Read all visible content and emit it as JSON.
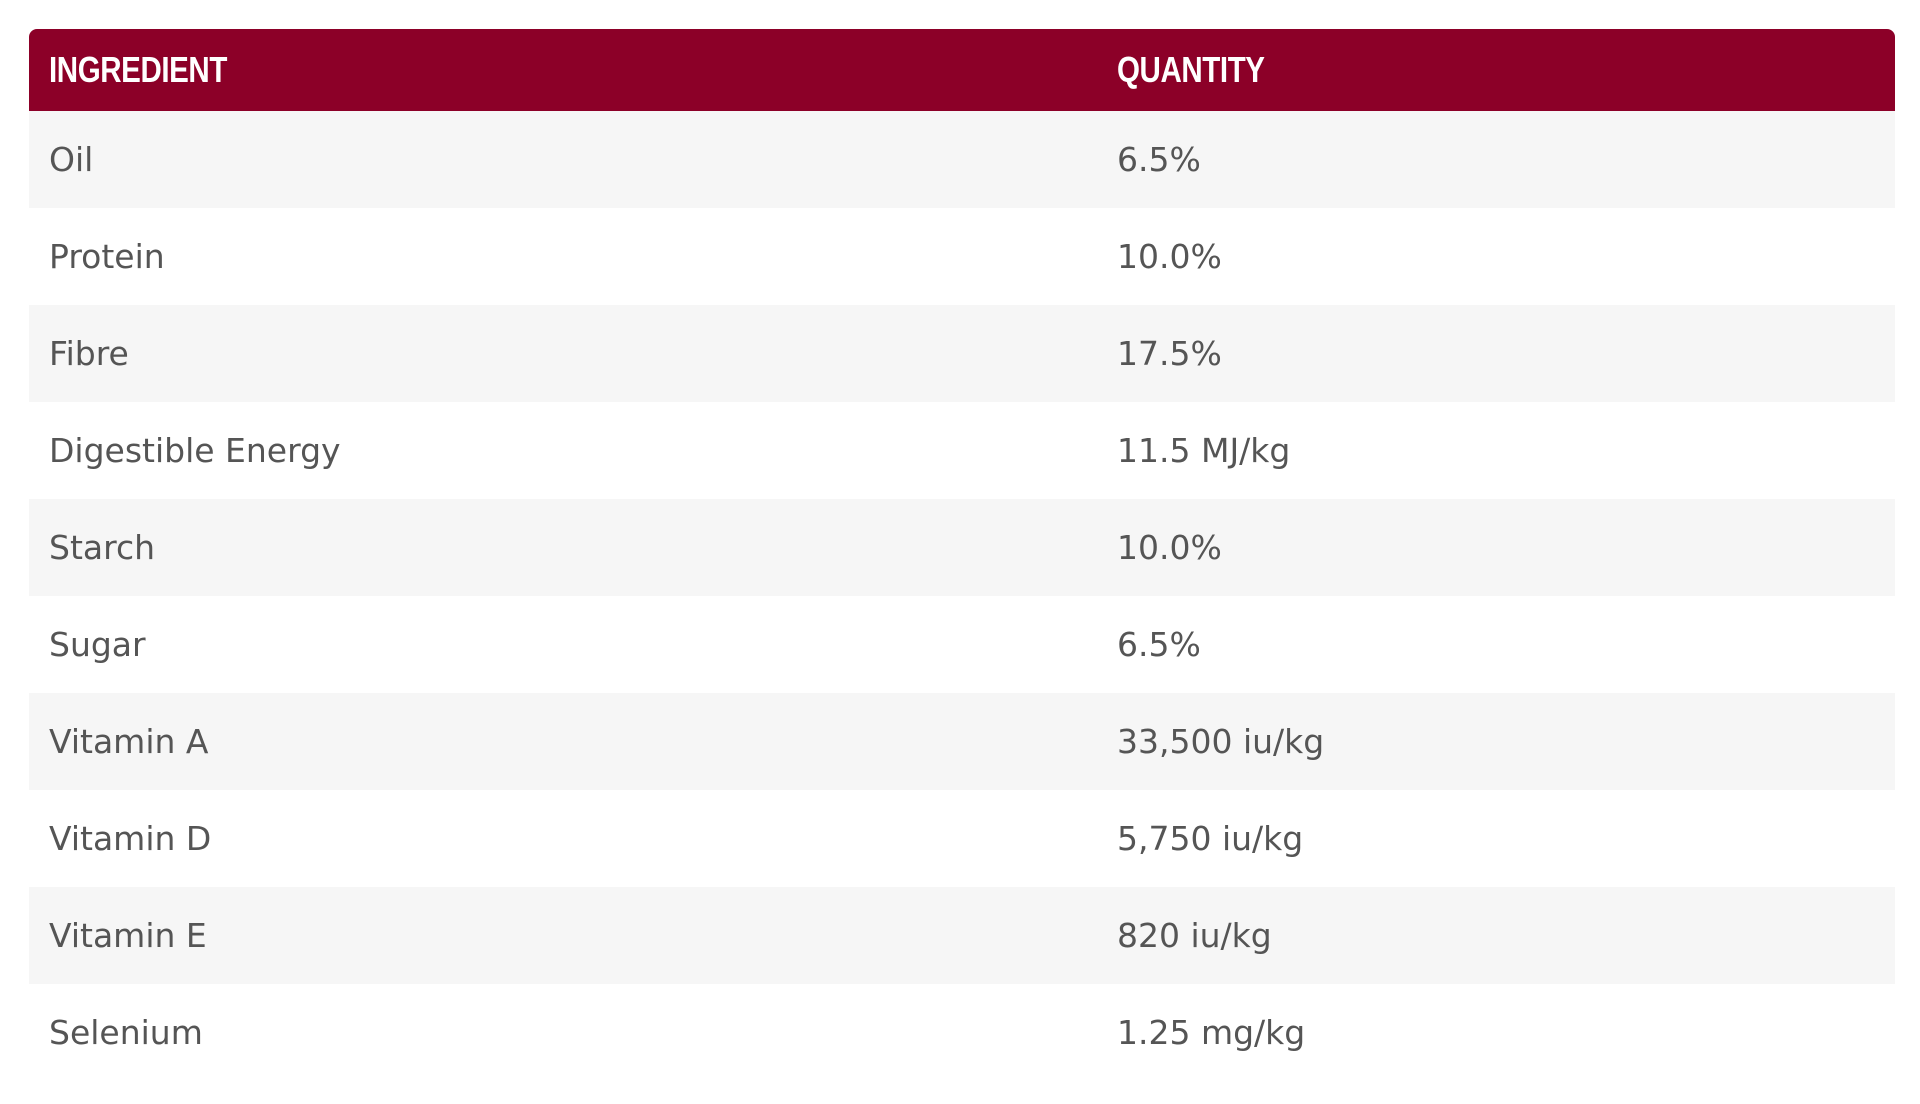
{
  "table": {
    "headers": [
      "INGREDIENT",
      "QUANTITY"
    ],
    "rows": [
      [
        "Oil",
        "6.5%"
      ],
      [
        "Protein",
        "10.0%"
      ],
      [
        "Fibre",
        "17.5%"
      ],
      [
        "Digestible Energy",
        "11.5 MJ/kg"
      ],
      [
        "Starch",
        "10.0%"
      ],
      [
        "Sugar",
        "6.5%"
      ],
      [
        "Vitamin A",
        "33,500 iu/kg"
      ],
      [
        "Vitamin D",
        "5,750 iu/kg"
      ],
      [
        "Vitamin E",
        "820 iu/kg"
      ],
      [
        "Selenium",
        "1.25 mg/kg"
      ]
    ]
  },
  "colors": {
    "header_bg": "#8c0028",
    "header_text": "#ffffff",
    "row_odd": "#f6f6f6",
    "row_even": "#ffffff",
    "cell_text": "#555555"
  }
}
